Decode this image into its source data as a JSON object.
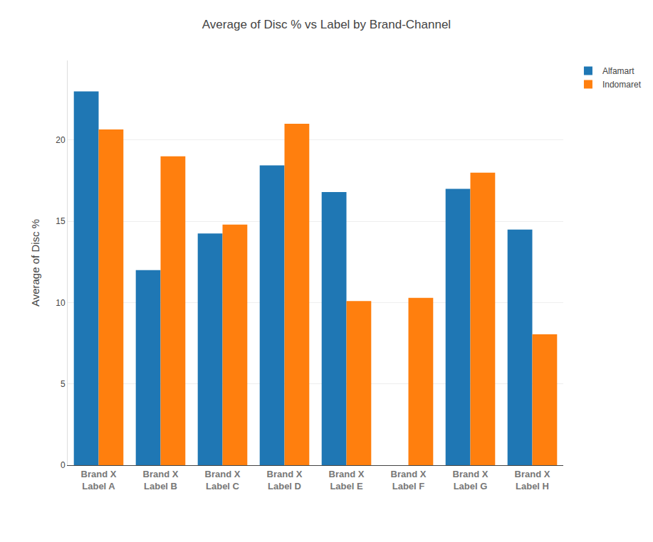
{
  "chart_data": {
    "type": "bar",
    "title": "Average of Disc % vs Label by Brand-Channel",
    "y_label": "Average of Disc %",
    "categories": [
      "Brand X\nLabel A",
      "Brand X\nLabel B",
      "Brand X\nLabel C",
      "Brand X\nLabel D",
      "Brand X\nLabel E",
      "Brand X\nLabel F",
      "Brand X\nLabel G",
      "Brand X\nLabel H"
    ],
    "series": [
      {
        "name": "Alfamart",
        "color": "#1f77b4",
        "values": [
          23.0,
          12.0,
          14.25,
          18.45,
          16.8,
          null,
          17.0,
          14.5
        ]
      },
      {
        "name": "Indomaret",
        "color": "#ff7f0e",
        "values": [
          20.65,
          19.0,
          14.8,
          21.0,
          10.1,
          10.3,
          18.0,
          8.05
        ]
      }
    ],
    "ylim": [
      0,
      24.9
    ],
    "yticks": [
      0,
      5,
      10,
      15,
      20
    ],
    "grid": true,
    "legend": "top-right"
  }
}
